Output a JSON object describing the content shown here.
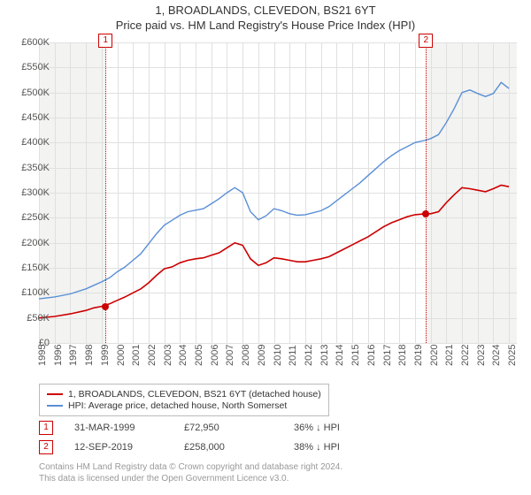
{
  "title": {
    "line1": "1, BROADLANDS, CLEVEDON, BS21 6YT",
    "line2": "Price paid vs. HM Land Registry's House Price Index (HPI)"
  },
  "chart": {
    "type": "line",
    "background_color": "#ffffff",
    "shade_color": "#f3f3f1",
    "grid_color": "#e0e0e0",
    "x_start": 1995,
    "x_end": 2025.5,
    "x_ticks": [
      1995,
      1996,
      1997,
      1998,
      1999,
      2000,
      2001,
      2002,
      2003,
      2004,
      2005,
      2006,
      2007,
      2008,
      2009,
      2010,
      2011,
      2012,
      2013,
      2014,
      2015,
      2016,
      2017,
      2018,
      2019,
      2020,
      2021,
      2022,
      2023,
      2024,
      2025
    ],
    "y_min": 0,
    "y_max": 600,
    "y_ticks": [
      0,
      50,
      100,
      150,
      200,
      250,
      300,
      350,
      400,
      450,
      500,
      550,
      600
    ],
    "y_label_prefix": "£",
    "y_label_suffix": "K",
    "series": [
      {
        "name": "1, BROADLANDS, CLEVEDON, BS21 6YT (detached house)",
        "color": "#cc0000",
        "width": 1.6,
        "data": [
          [
            1995,
            50
          ],
          [
            1996,
            53
          ],
          [
            1997,
            58
          ],
          [
            1998,
            65
          ],
          [
            1998.5,
            70
          ],
          [
            1999,
            73
          ],
          [
            1999.5,
            78
          ],
          [
            2000,
            85
          ],
          [
            2000.5,
            92
          ],
          [
            2001,
            100
          ],
          [
            2001.5,
            108
          ],
          [
            2002,
            120
          ],
          [
            2002.5,
            135
          ],
          [
            2003,
            148
          ],
          [
            2003.5,
            152
          ],
          [
            2004,
            160
          ],
          [
            2004.5,
            165
          ],
          [
            2005,
            168
          ],
          [
            2005.5,
            170
          ],
          [
            2006,
            175
          ],
          [
            2006.5,
            180
          ],
          [
            2007,
            190
          ],
          [
            2007.5,
            200
          ],
          [
            2008,
            195
          ],
          [
            2008.5,
            168
          ],
          [
            2009,
            155
          ],
          [
            2009.5,
            160
          ],
          [
            2010,
            170
          ],
          [
            2010.5,
            168
          ],
          [
            2011,
            165
          ],
          [
            2011.5,
            162
          ],
          [
            2012,
            162
          ],
          [
            2012.5,
            165
          ],
          [
            2013,
            168
          ],
          [
            2013.5,
            172
          ],
          [
            2014,
            180
          ],
          [
            2014.5,
            188
          ],
          [
            2015,
            196
          ],
          [
            2015.5,
            204
          ],
          [
            2016,
            212
          ],
          [
            2016.5,
            222
          ],
          [
            2017,
            232
          ],
          [
            2017.5,
            240
          ],
          [
            2018,
            246
          ],
          [
            2018.5,
            252
          ],
          [
            2019,
            256
          ],
          [
            2019.7,
            258
          ],
          [
            2020,
            258
          ],
          [
            2020.5,
            262
          ],
          [
            2021,
            280
          ],
          [
            2021.5,
            296
          ],
          [
            2022,
            310
          ],
          [
            2022.5,
            308
          ],
          [
            2023,
            305
          ],
          [
            2023.5,
            302
          ],
          [
            2024,
            308
          ],
          [
            2024.5,
            315
          ],
          [
            2025,
            312
          ]
        ]
      },
      {
        "name": "HPI: Average price, detached house, North Somerset",
        "color": "#5a8fd6",
        "width": 1.4,
        "data": [
          [
            1995,
            88
          ],
          [
            1996,
            92
          ],
          [
            1997,
            98
          ],
          [
            1998,
            108
          ],
          [
            1998.5,
            115
          ],
          [
            1999,
            122
          ],
          [
            1999.5,
            130
          ],
          [
            2000,
            142
          ],
          [
            2000.5,
            152
          ],
          [
            2001,
            165
          ],
          [
            2001.5,
            178
          ],
          [
            2002,
            198
          ],
          [
            2002.5,
            218
          ],
          [
            2003,
            235
          ],
          [
            2003.5,
            245
          ],
          [
            2004,
            255
          ],
          [
            2004.5,
            262
          ],
          [
            2005,
            265
          ],
          [
            2005.5,
            268
          ],
          [
            2006,
            278
          ],
          [
            2006.5,
            288
          ],
          [
            2007,
            300
          ],
          [
            2007.5,
            310
          ],
          [
            2008,
            300
          ],
          [
            2008.5,
            262
          ],
          [
            2009,
            246
          ],
          [
            2009.5,
            254
          ],
          [
            2010,
            268
          ],
          [
            2010.5,
            264
          ],
          [
            2011,
            258
          ],
          [
            2011.5,
            255
          ],
          [
            2012,
            256
          ],
          [
            2012.5,
            260
          ],
          [
            2013,
            264
          ],
          [
            2013.5,
            272
          ],
          [
            2014,
            284
          ],
          [
            2014.5,
            296
          ],
          [
            2015,
            308
          ],
          [
            2015.5,
            320
          ],
          [
            2016,
            334
          ],
          [
            2016.5,
            348
          ],
          [
            2017,
            362
          ],
          [
            2017.5,
            374
          ],
          [
            2018,
            384
          ],
          [
            2018.5,
            392
          ],
          [
            2019,
            400
          ],
          [
            2019.7,
            405
          ],
          [
            2020,
            408
          ],
          [
            2020.5,
            416
          ],
          [
            2021,
            440
          ],
          [
            2021.5,
            468
          ],
          [
            2022,
            500
          ],
          [
            2022.5,
            505
          ],
          [
            2023,
            498
          ],
          [
            2023.5,
            492
          ],
          [
            2024,
            498
          ],
          [
            2024.5,
            520
          ],
          [
            2025,
            508
          ]
        ]
      }
    ],
    "markers": [
      {
        "id": "1",
        "x": 1999.25,
        "y": 73,
        "date": "31-MAR-1999",
        "price": "£72,950",
        "diff": "36% ↓ HPI"
      },
      {
        "id": "2",
        "x": 2019.7,
        "y": 258,
        "date": "12-SEP-2019",
        "price": "£258,000",
        "diff": "38% ↓ HPI"
      }
    ]
  },
  "legend": {
    "border_color": "#bbbbbb"
  },
  "copyright": {
    "line1": "Contains HM Land Registry data © Crown copyright and database right 2024.",
    "line2": "This data is licensed under the Open Government Licence v3.0."
  }
}
